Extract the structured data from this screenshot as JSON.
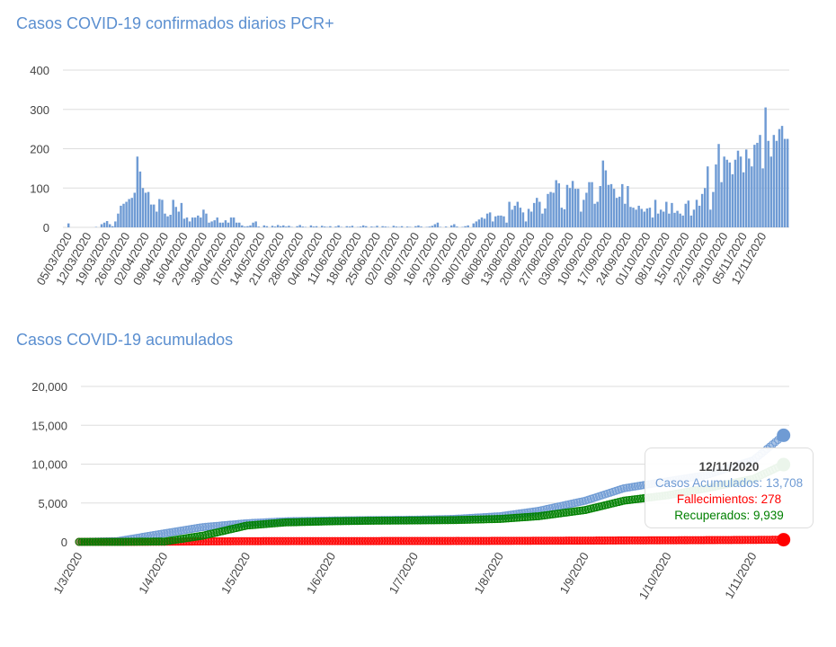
{
  "chart_data": [
    {
      "type": "bar",
      "title": "Casos COVID-19 confirmados diarios PCR+",
      "ylim": [
        0,
        400
      ],
      "yticks": [
        0,
        100,
        200,
        300,
        400
      ],
      "grid": true,
      "color": "#6f9bd4",
      "xtick_labels": [
        "05/03/2020",
        "12/03/2020",
        "19/03/2020",
        "26/03/2020",
        "02/04/2020",
        "09/04/2020",
        "16/04/2020",
        "23/04/2020",
        "30/04/2020",
        "07/05/2020",
        "14/05/2020",
        "21/05/2020",
        "28/05/2020",
        "04/06/2020",
        "11/06/2020",
        "18/06/2020",
        "25/06/2020",
        "02/07/2020",
        "09/07/2020",
        "16/07/2020",
        "23/07/2020",
        "30/07/2020",
        "06/08/2020",
        "13/08/2020",
        "20/08/2020",
        "27/08/2020",
        "03/09/2020",
        "10/09/2020",
        "17/09/2020",
        "24/09/2020",
        "01/10/2020",
        "08/10/2020",
        "15/10/2020",
        "22/10/2020",
        "29/10/2020",
        "05/11/2020",
        "12/11/2020"
      ],
      "values": [
        10,
        0,
        0,
        0,
        0,
        0,
        0,
        0,
        0,
        0,
        1,
        0,
        8,
        12,
        16,
        8,
        3,
        15,
        35,
        55,
        60,
        65,
        72,
        75,
        88,
        180,
        142,
        100,
        88,
        90,
        58,
        58,
        40,
        72,
        70,
        35,
        28,
        32,
        70,
        52,
        40,
        62,
        22,
        25,
        15,
        25,
        25,
        30,
        25,
        45,
        35,
        12,
        15,
        18,
        25,
        12,
        12,
        18,
        12,
        25,
        25,
        12,
        12,
        5,
        2,
        3,
        5,
        12,
        15,
        2,
        0,
        5,
        3,
        0,
        4,
        2,
        6,
        3,
        5,
        2,
        4,
        1,
        0,
        3,
        6,
        2,
        1,
        0,
        5,
        2,
        3,
        0,
        4,
        2,
        1,
        3,
        0,
        2,
        5,
        1,
        0,
        3,
        2,
        4,
        0,
        1,
        2,
        5,
        3,
        0,
        2,
        1,
        4,
        0,
        3,
        2,
        1,
        0,
        4,
        2,
        1,
        3,
        0,
        2,
        1,
        0,
        3,
        5,
        2,
        0,
        1,
        2,
        4,
        8,
        12,
        1,
        0,
        2,
        0,
        5,
        8,
        2,
        0,
        1,
        3,
        5,
        0,
        10,
        15,
        20,
        25,
        22,
        35,
        38,
        15,
        28,
        30,
        30,
        28,
        12,
        65,
        45,
        55,
        65,
        50,
        38,
        15,
        47,
        40,
        62,
        75,
        65,
        35,
        48,
        85,
        90,
        88,
        120,
        112,
        50,
        46,
        108,
        100,
        118,
        98,
        98,
        40,
        70,
        88,
        115,
        115,
        60,
        65,
        105,
        170,
        145,
        108,
        110,
        98,
        75,
        78,
        110,
        60,
        105,
        52,
        50,
        45,
        55,
        47,
        40,
        48,
        50,
        25,
        70,
        35,
        45,
        40,
        65,
        35,
        62,
        37,
        42,
        35,
        30,
        60,
        68,
        30,
        45,
        70,
        55,
        85,
        100,
        155,
        45,
        90,
        160,
        212,
        115,
        180,
        172,
        165,
        135,
        172,
        195,
        180,
        140,
        198,
        175,
        155,
        210,
        215,
        235,
        150,
        305,
        220,
        180,
        235,
        220,
        250,
        258,
        225,
        225
      ]
    },
    {
      "type": "line",
      "title": "Casos COVID-19 acumulados",
      "ylim": [
        0,
        20000
      ],
      "yticks": [
        "0",
        "5,000",
        "10,000",
        "15,000",
        "20,000"
      ],
      "grid": true,
      "xtick_labels": [
        "1/3/2020",
        "1/4/2020",
        "1/5/2020",
        "1/6/2020",
        "1/7/2020",
        "1/8/2020",
        "1/9/2020",
        "1/10/2020",
        "1/11/2020"
      ],
      "x": [
        "1/3",
        "15/3",
        "1/4",
        "15/4",
        "1/5",
        "15/5",
        "1/6",
        "15/6",
        "1/7",
        "15/7",
        "1/8",
        "15/8",
        "1/9",
        "15/9",
        "1/10",
        "15/10",
        "1/11",
        "12/11"
      ],
      "series": [
        {
          "name": "Casos Acumulados",
          "color": "#6f9bd4",
          "values": [
            0,
            100,
            1100,
            1900,
            2400,
            2650,
            2750,
            2800,
            2850,
            2950,
            3300,
            4000,
            5300,
            6900,
            7800,
            8600,
            10500,
            13708
          ]
        },
        {
          "name": "Fallecimientos",
          "color": "#ff0000",
          "values": [
            0,
            0,
            20,
            60,
            90,
            100,
            105,
            108,
            110,
            115,
            125,
            140,
            160,
            185,
            205,
            225,
            250,
            278
          ]
        },
        {
          "name": "Recuperados",
          "color": "#008000",
          "values": [
            0,
            0,
            50,
            800,
            2100,
            2500,
            2650,
            2720,
            2760,
            2800,
            2950,
            3300,
            4100,
            5300,
            6000,
            6900,
            8100,
            9939
          ]
        }
      ],
      "tooltip": {
        "date": "12/11/2020",
        "lines": [
          "Casos Acumulados: 13,708",
          "Fallecimientos: 278",
          "Recuperados: 9,939"
        ]
      }
    }
  ]
}
